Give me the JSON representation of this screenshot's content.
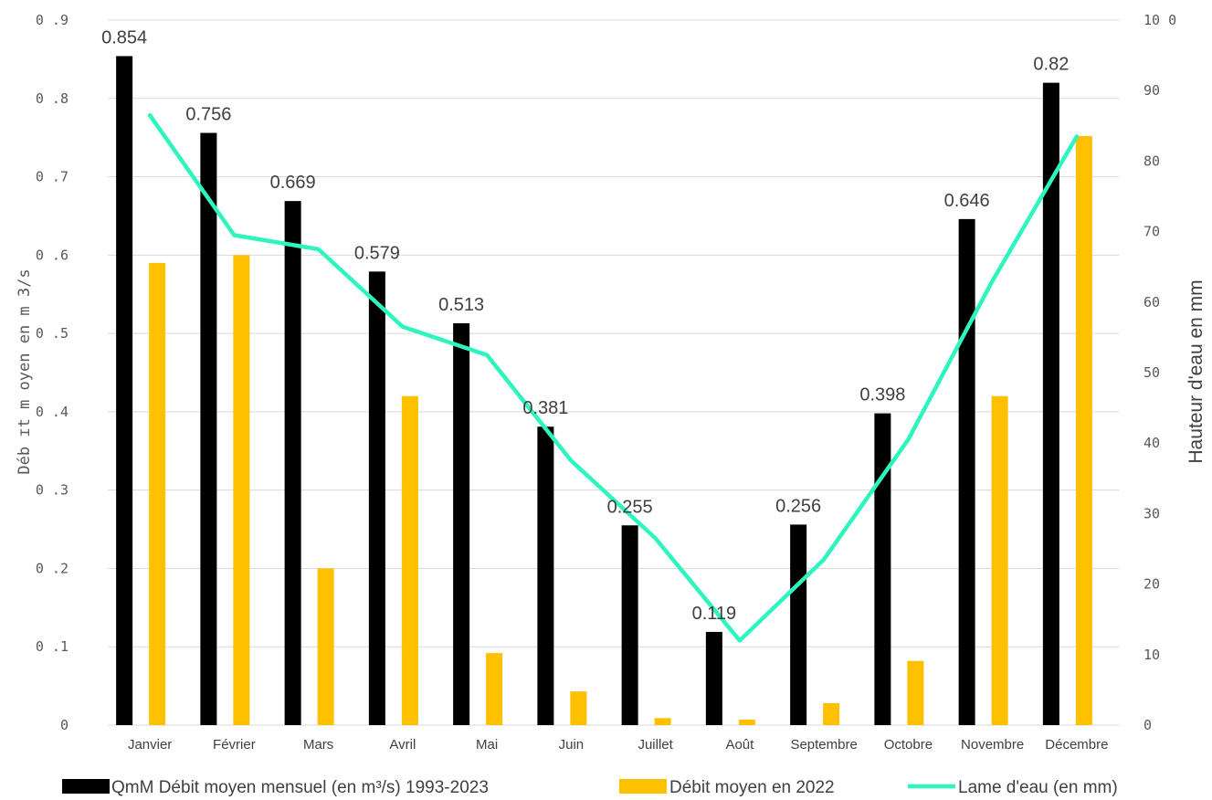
{
  "chart_data": {
    "type": "bar",
    "categories": [
      "Janvier",
      "Février",
      "Mars",
      "Avril",
      "Mai",
      "Juin",
      "Juillet",
      "Août",
      "Septembre",
      "Octobre",
      "Novembre",
      "Décembre"
    ],
    "series": [
      {
        "name": "QmM Débit moyen mensuel (en m³/s) 1993-2023",
        "type": "bar",
        "axis": "left",
        "color": "#000000",
        "values": [
          0.854,
          0.756,
          0.669,
          0.579,
          0.513,
          0.381,
          0.255,
          0.119,
          0.256,
          0.398,
          0.646,
          0.82
        ],
        "data_labels": [
          "0.854",
          "0.756",
          "0.669",
          "0.579",
          "0.513",
          "0.381",
          "0.255",
          "0.119",
          "0.256",
          "0.398",
          "0.646",
          "0.82"
        ]
      },
      {
        "name": "Débit moyen en 2022",
        "type": "bar",
        "axis": "left",
        "color": "#FFC000",
        "values": [
          0.59,
          0.6,
          0.2,
          0.42,
          0.092,
          0.043,
          0.009,
          0.007,
          0.028,
          0.082,
          0.42,
          0.752
        ]
      },
      {
        "name": "Lame d'eau (en mm)",
        "type": "line",
        "axis": "right",
        "color": "#2EF5C0",
        "values": [
          86.5,
          69.5,
          67.5,
          56.5,
          52.5,
          37.5,
          26.5,
          12,
          23.5,
          40.5,
          63,
          83.5
        ]
      }
    ],
    "ylabel": "Débit moyen en m3/s",
    "ylabel_display": "Déb ɪt m oyen en m 3/s",
    "ylim": [
      0,
      0.9
    ],
    "yticks": [
      "0",
      "0 .1",
      "0 .2",
      "0 .3",
      "0 .4",
      "0 .5",
      "0 .6",
      "0 .7",
      "0 .8",
      "0 .9"
    ],
    "y2label": "Hauteur d'eau en mm",
    "y2lim": [
      0,
      100
    ],
    "y2ticks": [
      "0",
      "10",
      "20",
      "30",
      "40",
      "50",
      "60",
      "70",
      "80",
      "90",
      "10 0"
    ],
    "grid": "horizontal",
    "legend_position": "bottom"
  }
}
